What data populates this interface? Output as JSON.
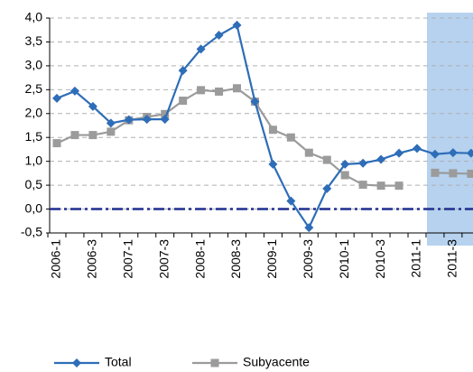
{
  "chart_data": {
    "type": "line",
    "categories": [
      "2006-1",
      null,
      "2006-3",
      null,
      "2007-1",
      null,
      "2007-3",
      null,
      "2008-1",
      null,
      "2008-3",
      null,
      "2009-1",
      null,
      "2009-3",
      null,
      "2010-1",
      null,
      "2010-3",
      null,
      "2011-1",
      null,
      "2011-3",
      null
    ],
    "series": [
      {
        "name": "Total",
        "color": "#2e6db8",
        "marker": "diamond",
        "values": [
          2.32,
          2.47,
          2.15,
          1.8,
          1.87,
          1.88,
          1.88,
          2.9,
          3.35,
          3.64,
          3.85,
          2.25,
          0.94,
          0.17,
          -0.39,
          0.43,
          0.94,
          0.96,
          1.04,
          1.17,
          1.27,
          1.15,
          1.18,
          1.17
        ]
      },
      {
        "name": "Subyacente",
        "color": "#9b9b9b",
        "marker": "square",
        "values": [
          1.38,
          1.55,
          1.55,
          1.62,
          1.86,
          1.93,
          1.99,
          2.27,
          2.49,
          2.46,
          2.53,
          2.25,
          1.66,
          1.5,
          1.18,
          1.03,
          0.71,
          0.51,
          0.49,
          0.49,
          null,
          0.76,
          0.75,
          0.74
        ]
      }
    ],
    "ylim": [
      -0.5,
      4.0
    ],
    "yticks": [
      {
        "value": -0.5,
        "label": "-0,5"
      },
      {
        "value": 0,
        "label": "0,0"
      },
      {
        "value": 0.5,
        "label": "0,5"
      },
      {
        "value": 1.0,
        "label": "1,0"
      },
      {
        "value": 1.5,
        "label": "1,5"
      },
      {
        "value": 2.0,
        "label": "2,0"
      },
      {
        "value": 2.5,
        "label": "2,5"
      },
      {
        "value": 3.0,
        "label": "3,0"
      },
      {
        "value": 3.5,
        "label": "3,5"
      },
      {
        "value": 4.0,
        "label": "4,0"
      }
    ],
    "grid": true
  }
}
